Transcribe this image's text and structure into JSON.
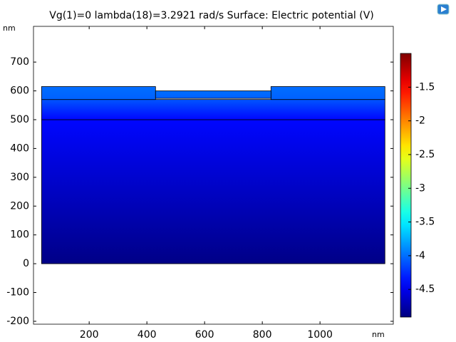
{
  "chart_data": {
    "type": "surface",
    "title": "Vg(1)=0 lambda(18)=3.2921 rad/s   Surface: Electric potential (V)",
    "x_unit": "nm",
    "y_unit": "nm",
    "xlim": [
      7,
      1254
    ],
    "ylim": [
      -210,
      824
    ],
    "xticks": [
      200,
      400,
      600,
      800,
      1000
    ],
    "yticks": [
      -200,
      -100,
      0,
      100,
      200,
      300,
      400,
      500,
      600,
      700
    ],
    "colormap": "jet",
    "clim": [
      -4.91,
      -1.0
    ],
    "cticks": [
      -4.5,
      -4,
      -3.5,
      -3,
      -2.5,
      -2,
      -1.5
    ],
    "regions": [
      {
        "x": [
          35,
          1225
        ],
        "y": [
          0,
          500
        ],
        "values": [
          -4.88,
          -4.4
        ]
      },
      {
        "x": [
          35,
          1225
        ],
        "y": [
          500,
          570
        ],
        "values": [
          -4.4,
          -4.1
        ]
      },
      {
        "x": [
          35,
          430
        ],
        "y": [
          570,
          615
        ],
        "values": [
          -4.05,
          -4.0
        ]
      },
      {
        "x": [
          830,
          1225
        ],
        "y": [
          570,
          615
        ],
        "values": [
          -4.05,
          -4.0
        ]
      },
      {
        "x": [
          430,
          830
        ],
        "y": [
          574,
          600
        ],
        "values": [
          -4.05,
          -4.0
        ]
      }
    ]
  }
}
